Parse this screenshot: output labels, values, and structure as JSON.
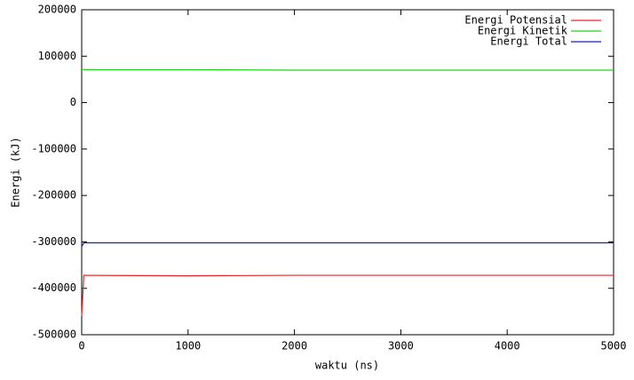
{
  "chart_data": {
    "type": "line",
    "xlabel": "waktu (ns)",
    "ylabel": "Energi (kJ)",
    "x": [
      0,
      20,
      1000,
      2000,
      3000,
      4000,
      5000
    ],
    "series": [
      {
        "name": "Energi Potensial",
        "color": "#e8262b",
        "values": [
          -460000,
          -372000,
          -373000,
          -372000,
          -372000,
          -372000,
          -372000
        ]
      },
      {
        "name": "Energi Kinetik",
        "color": "#22d41c",
        "values": [
          70000,
          71000,
          71000,
          70000,
          70000,
          70000,
          70000
        ]
      },
      {
        "name": "Energi Total",
        "color": "#1c1cb8",
        "values": [
          -310000,
          -302000,
          -302000,
          -302000,
          -302000,
          -302000,
          -302000
        ]
      }
    ],
    "xlim": [
      0,
      5000
    ],
    "xticks": [
      0,
      1000,
      2000,
      3000,
      4000,
      5000
    ],
    "ylim": [
      -500000,
      200000
    ],
    "yticks": [
      -500000,
      -400000,
      -300000,
      -200000,
      -100000,
      0,
      100000,
      200000
    ],
    "legend": "upper right",
    "grid": false
  }
}
